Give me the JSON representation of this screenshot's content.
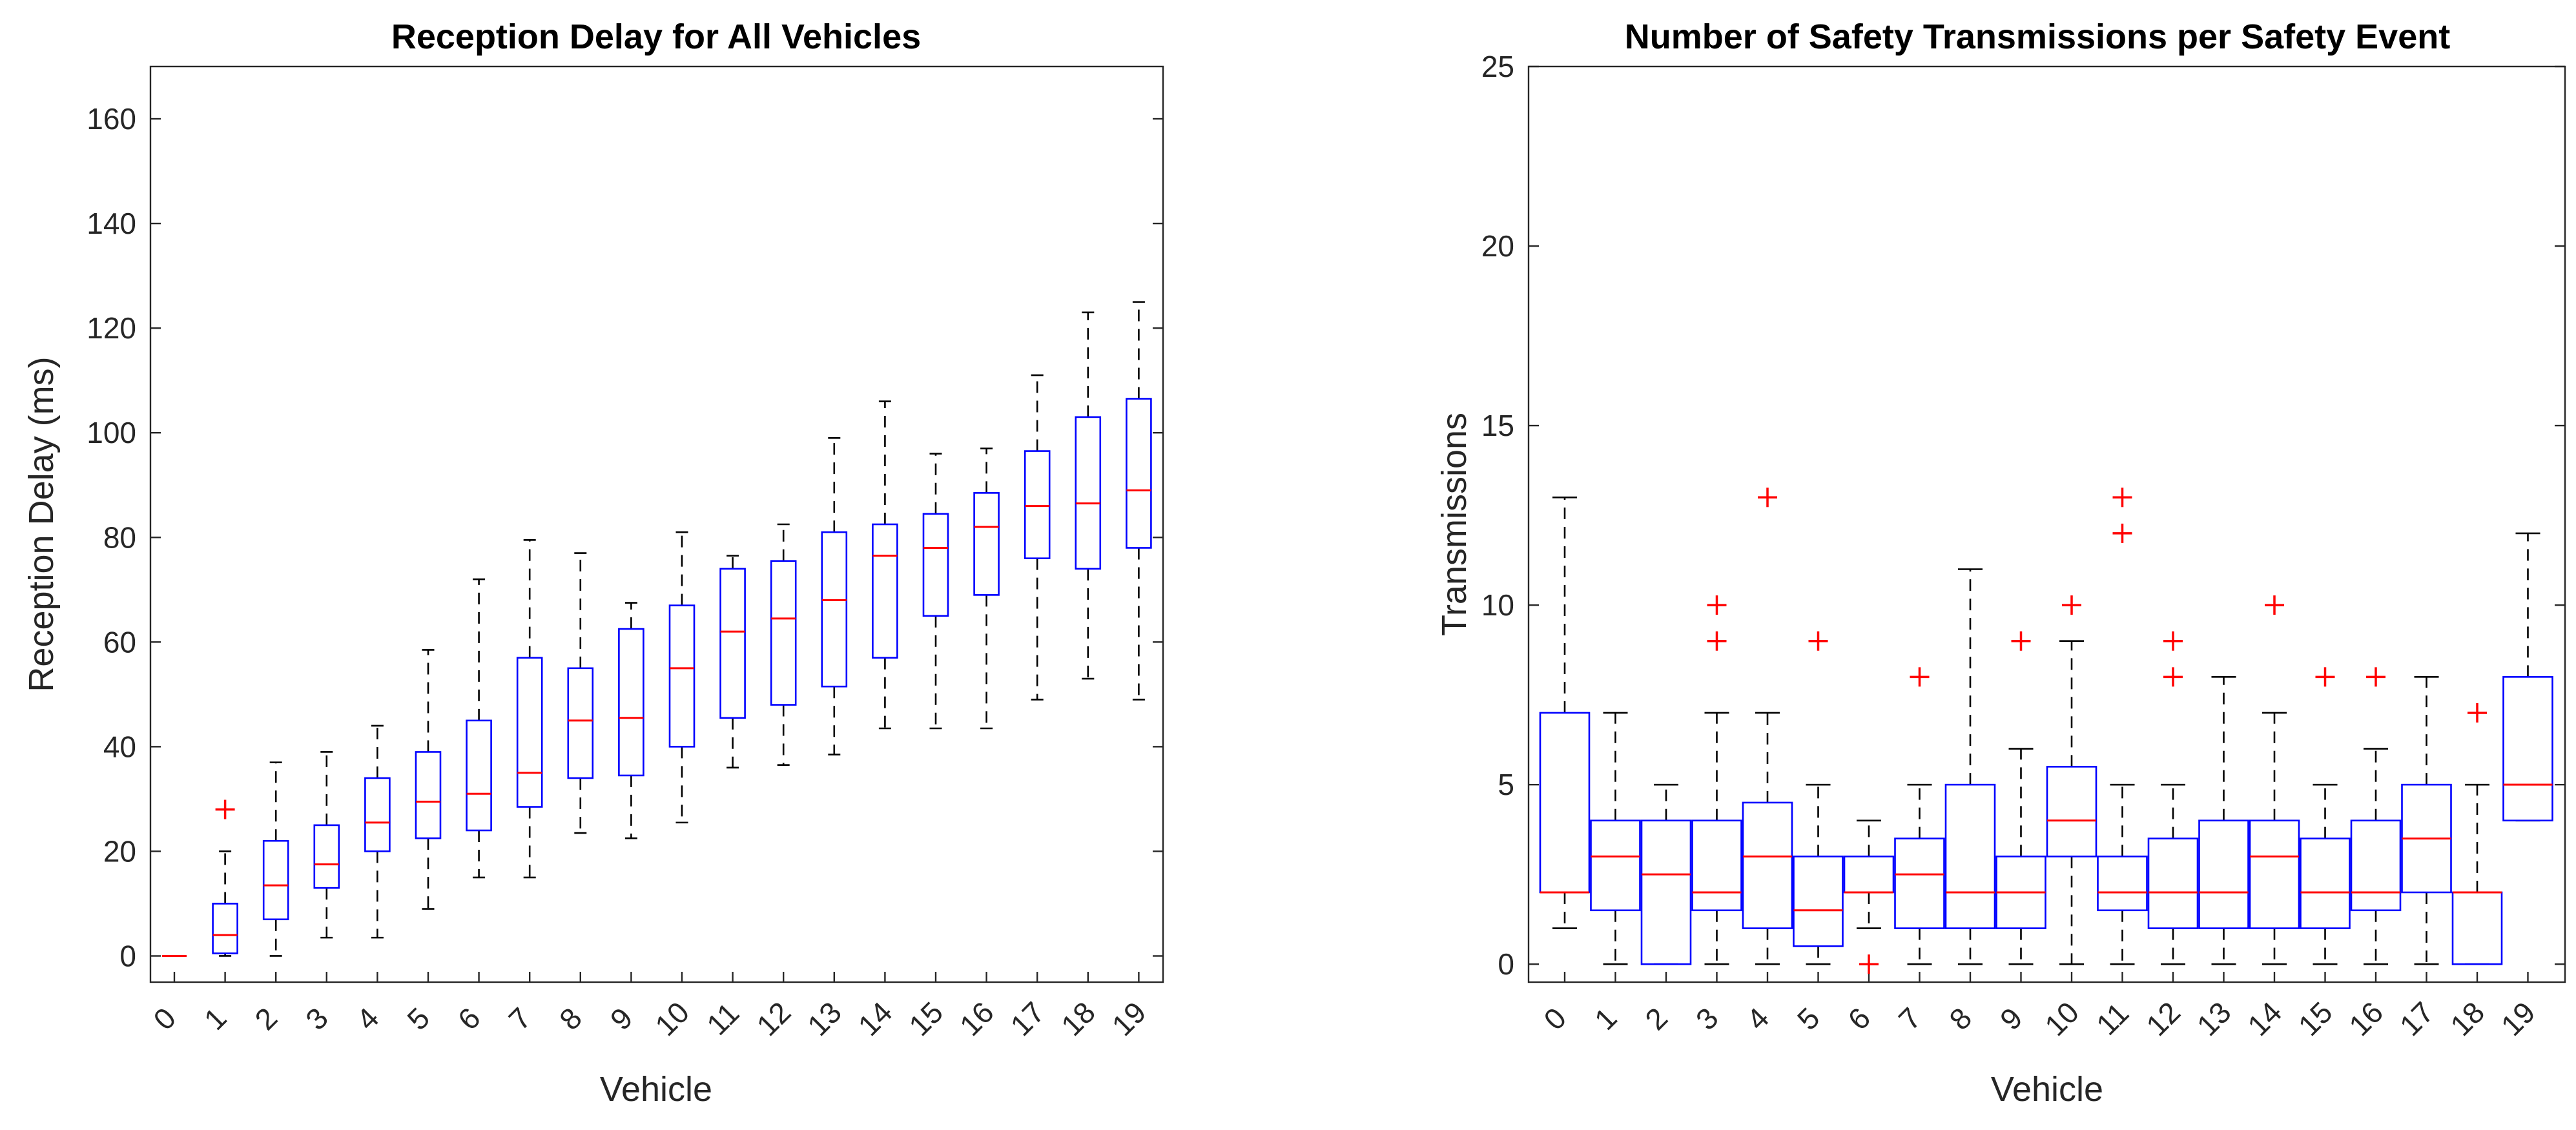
{
  "chart_data": [
    {
      "type": "boxplot",
      "title": "Reception Delay for All Vehicles",
      "xlabel": "Vehicle",
      "ylabel": "Reception Delay (ms)",
      "ylim": [
        -5,
        170
      ],
      "yticks": [
        0,
        20,
        40,
        60,
        80,
        100,
        120,
        140,
        160
      ],
      "categories": [
        "0",
        "1",
        "2",
        "3",
        "4",
        "5",
        "6",
        "7",
        "8",
        "9",
        "10",
        "11",
        "12",
        "13",
        "14",
        "15",
        "16",
        "17",
        "18",
        "19"
      ],
      "series": [
        {
          "name": "0",
          "min": 0,
          "q1": 0,
          "median": 0,
          "q3": 0,
          "max": 0,
          "outliers": []
        },
        {
          "name": "1",
          "min": 0,
          "q1": 0.5,
          "median": 4,
          "q3": 10,
          "max": 20,
          "outliers": [
            28
          ]
        },
        {
          "name": "2",
          "min": 0,
          "q1": 7,
          "median": 13.5,
          "q3": 22,
          "max": 37,
          "outliers": []
        },
        {
          "name": "3",
          "min": 3.5,
          "q1": 13,
          "median": 17.5,
          "q3": 25,
          "max": 39,
          "outliers": []
        },
        {
          "name": "4",
          "min": 3.5,
          "q1": 20,
          "median": 25.5,
          "q3": 34,
          "max": 44,
          "outliers": []
        },
        {
          "name": "5",
          "min": 9,
          "q1": 22.5,
          "median": 29.5,
          "q3": 39,
          "max": 58.5,
          "outliers": []
        },
        {
          "name": "6",
          "min": 15,
          "q1": 24,
          "median": 31,
          "q3": 45,
          "max": 72,
          "outliers": []
        },
        {
          "name": "7",
          "min": 15,
          "q1": 28.5,
          "median": 35,
          "q3": 57,
          "max": 79.5,
          "outliers": []
        },
        {
          "name": "8",
          "min": 23.5,
          "q1": 34,
          "median": 45,
          "q3": 55,
          "max": 77,
          "outliers": []
        },
        {
          "name": "9",
          "min": 22.5,
          "q1": 34.5,
          "median": 45.5,
          "q3": 62.5,
          "max": 67.5,
          "outliers": []
        },
        {
          "name": "10",
          "min": 25.5,
          "q1": 40,
          "median": 55,
          "q3": 67,
          "max": 81,
          "outliers": []
        },
        {
          "name": "11",
          "min": 36,
          "q1": 45.5,
          "median": 62,
          "q3": 74,
          "max": 76.5,
          "outliers": []
        },
        {
          "name": "12",
          "min": 36.5,
          "q1": 48,
          "median": 64.5,
          "q3": 75.5,
          "max": 82.5,
          "outliers": []
        },
        {
          "name": "13",
          "min": 38.5,
          "q1": 51.5,
          "median": 68,
          "q3": 81,
          "max": 99,
          "outliers": []
        },
        {
          "name": "14",
          "min": 43.5,
          "q1": 57,
          "median": 76.5,
          "q3": 82.5,
          "max": 106,
          "outliers": []
        },
        {
          "name": "15",
          "min": 43.5,
          "q1": 65,
          "median": 78,
          "q3": 84.5,
          "max": 96,
          "outliers": []
        },
        {
          "name": "16",
          "min": 43.5,
          "q1": 69,
          "median": 82,
          "q3": 88.5,
          "max": 97,
          "outliers": []
        },
        {
          "name": "17",
          "min": 49,
          "q1": 76,
          "median": 86,
          "q3": 96.5,
          "max": 111,
          "outliers": []
        },
        {
          "name": "18",
          "min": 53,
          "q1": 74,
          "median": 86.5,
          "q3": 103,
          "max": 123,
          "outliers": []
        },
        {
          "name": "19",
          "min": 49,
          "q1": 78,
          "median": 89,
          "q3": 106.5,
          "max": 125,
          "outliers": []
        }
      ]
    },
    {
      "type": "boxplot",
      "title": "Number of Safety Transmissions per Safety Event",
      "xlabel": "Vehicle",
      "ylabel": "Transmissions",
      "ylim": [
        -0.5,
        25
      ],
      "yticks": [
        0,
        5,
        10,
        15,
        20,
        25
      ],
      "categories": [
        "0",
        "1",
        "2",
        "3",
        "4",
        "5",
        "6",
        "7",
        "8",
        "9",
        "10",
        "11",
        "12",
        "13",
        "14",
        "15",
        "16",
        "17",
        "18",
        "19"
      ],
      "series": [
        {
          "name": "0",
          "min": 1,
          "q1": 2,
          "median": 2,
          "q3": 7,
          "max": 13,
          "outliers": []
        },
        {
          "name": "1",
          "min": 0,
          "q1": 1.5,
          "median": 3,
          "q3": 4,
          "max": 7,
          "outliers": []
        },
        {
          "name": "2",
          "min": 0,
          "q1": 0,
          "median": 2.5,
          "q3": 4,
          "max": 5,
          "outliers": []
        },
        {
          "name": "3",
          "min": 0,
          "q1": 1.5,
          "median": 2,
          "q3": 4,
          "max": 7,
          "outliers": [
            9,
            10
          ]
        },
        {
          "name": "4",
          "min": 0,
          "q1": 1,
          "median": 3,
          "q3": 4.5,
          "max": 7,
          "outliers": [
            13
          ]
        },
        {
          "name": "5",
          "min": 0,
          "q1": 0.5,
          "median": 1.5,
          "q3": 3,
          "max": 5,
          "outliers": [
            9
          ]
        },
        {
          "name": "6",
          "min": 1,
          "q1": 2,
          "median": 2,
          "q3": 3,
          "max": 4,
          "outliers": [
            0
          ]
        },
        {
          "name": "7",
          "min": 0,
          "q1": 1,
          "median": 2.5,
          "q3": 3.5,
          "max": 5,
          "outliers": [
            8
          ]
        },
        {
          "name": "8",
          "min": 0,
          "q1": 1,
          "median": 2,
          "q3": 5,
          "max": 11,
          "outliers": []
        },
        {
          "name": "9",
          "min": 0,
          "q1": 1,
          "median": 2,
          "q3": 3,
          "max": 6,
          "outliers": [
            9
          ]
        },
        {
          "name": "10",
          "min": 0,
          "q1": 3,
          "median": 4,
          "q3": 5.5,
          "max": 9,
          "outliers": [
            10
          ]
        },
        {
          "name": "11",
          "min": 0,
          "q1": 1.5,
          "median": 2,
          "q3": 3,
          "max": 5,
          "outliers": [
            12,
            13
          ]
        },
        {
          "name": "12",
          "min": 0,
          "q1": 1,
          "median": 2,
          "q3": 3.5,
          "max": 5,
          "outliers": [
            8,
            9
          ]
        },
        {
          "name": "13",
          "min": 0,
          "q1": 1,
          "median": 2,
          "q3": 4,
          "max": 8,
          "outliers": []
        },
        {
          "name": "14",
          "min": 0,
          "q1": 1,
          "median": 3,
          "q3": 4,
          "max": 7,
          "outliers": [
            10
          ]
        },
        {
          "name": "15",
          "min": 0,
          "q1": 1,
          "median": 2,
          "q3": 3.5,
          "max": 5,
          "outliers": [
            8
          ]
        },
        {
          "name": "16",
          "min": 0,
          "q1": 1.5,
          "median": 2,
          "q3": 4,
          "max": 6,
          "outliers": [
            8
          ]
        },
        {
          "name": "17",
          "min": 0,
          "q1": 2,
          "median": 3.5,
          "q3": 5,
          "max": 8,
          "outliers": []
        },
        {
          "name": "18",
          "min": 0,
          "q1": 0,
          "median": 2,
          "q3": 2,
          "max": 5,
          "outliers": [
            7
          ]
        },
        {
          "name": "19",
          "min": 4,
          "q1": 4,
          "median": 5,
          "q3": 8,
          "max": 12,
          "outliers": []
        }
      ]
    }
  ]
}
